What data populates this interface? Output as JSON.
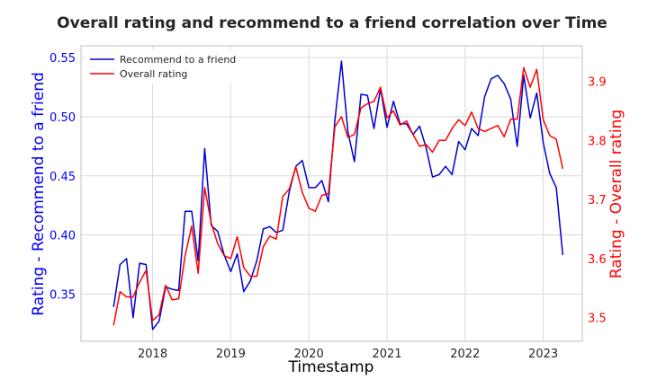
{
  "chart_data": {
    "type": "line",
    "title": "Overall rating and recommend to a friend correlation over Time",
    "xlabel": "Timestamp",
    "x_ticks": [
      "2018",
      "2019",
      "2020",
      "2021",
      "2022",
      "2023"
    ],
    "x": [
      "2017-07",
      "2017-08",
      "2017-09",
      "2017-10",
      "2017-11",
      "2017-12",
      "2018-01",
      "2018-02",
      "2018-03",
      "2018-04",
      "2018-05",
      "2018-06",
      "2018-07",
      "2018-08",
      "2018-09",
      "2018-10",
      "2018-11",
      "2018-12",
      "2019-01",
      "2019-02",
      "2019-03",
      "2019-04",
      "2019-05",
      "2019-06",
      "2019-07",
      "2019-08",
      "2019-09",
      "2019-10",
      "2019-11",
      "2019-12",
      "2020-01",
      "2020-02",
      "2020-03",
      "2020-04",
      "2020-05",
      "2020-06",
      "2020-07",
      "2020-08",
      "2020-09",
      "2020-10",
      "2020-11",
      "2020-12",
      "2021-01",
      "2021-02",
      "2021-03",
      "2021-04",
      "2021-05",
      "2021-06",
      "2021-07",
      "2021-08",
      "2021-09",
      "2021-10",
      "2021-11",
      "2021-12",
      "2022-01",
      "2022-02",
      "2022-03",
      "2022-04",
      "2022-05",
      "2022-06",
      "2022-07",
      "2022-08",
      "2022-09",
      "2022-10",
      "2022-11",
      "2022-12",
      "2023-01",
      "2023-02",
      "2023-03",
      "2023-04"
    ],
    "left_axis": {
      "label": "Rating - Recommend to a friend",
      "color": "#0000ff",
      "range": [
        0.31,
        0.56
      ],
      "ticks": [
        "0.35",
        "0.40",
        "0.45",
        "0.50",
        "0.55"
      ]
    },
    "right_axis": {
      "label": "Rating - Overall rating",
      "color": "#ff0000",
      "range": [
        3.46,
        3.96
      ],
      "ticks": [
        "3.5",
        "3.6",
        "3.7",
        "3.8",
        "3.9"
      ]
    },
    "grid": true,
    "legend_position": "top-left",
    "series": [
      {
        "name": "Recommend to a friend",
        "axis": "left",
        "color": "#0000cc",
        "values": [
          0.339,
          0.375,
          0.38,
          0.33,
          0.376,
          0.375,
          0.32,
          0.327,
          0.356,
          0.354,
          0.353,
          0.42,
          0.42,
          0.378,
          0.473,
          0.408,
          0.403,
          0.383,
          0.369,
          0.384,
          0.352,
          0.361,
          0.378,
          0.405,
          0.407,
          0.402,
          0.404,
          0.437,
          0.458,
          0.463,
          0.44,
          0.44,
          0.446,
          0.428,
          0.497,
          0.547,
          0.487,
          0.462,
          0.519,
          0.518,
          0.49,
          0.524,
          0.491,
          0.513,
          0.494,
          0.494,
          0.485,
          0.492,
          0.474,
          0.449,
          0.451,
          0.458,
          0.451,
          0.479,
          0.472,
          0.49,
          0.484,
          0.517,
          0.532,
          0.535,
          0.528,
          0.515,
          0.475,
          0.535,
          0.499,
          0.52,
          0.478,
          0.452,
          0.44,
          0.383
        ]
      },
      {
        "name": "Overall rating",
        "axis": "right",
        "color": "#ff0000",
        "values": [
          3.487,
          3.544,
          3.535,
          3.535,
          3.56,
          3.58,
          3.495,
          3.505,
          3.555,
          3.53,
          3.532,
          3.605,
          3.655,
          3.575,
          3.72,
          3.66,
          3.625,
          3.605,
          3.6,
          3.637,
          3.585,
          3.57,
          3.57,
          3.62,
          3.638,
          3.633,
          3.705,
          3.718,
          3.755,
          3.712,
          3.685,
          3.68,
          3.707,
          3.71,
          3.823,
          3.84,
          3.805,
          3.81,
          3.855,
          3.862,
          3.866,
          3.89,
          3.838,
          3.85,
          3.826,
          3.833,
          3.81,
          3.79,
          3.793,
          3.78,
          3.8,
          3.8,
          3.82,
          3.835,
          3.825,
          3.848,
          3.82,
          3.815,
          3.82,
          3.825,
          3.806,
          3.836,
          3.836,
          3.923,
          3.89,
          3.92,
          3.835,
          3.808,
          3.802,
          3.752
        ]
      }
    ]
  }
}
